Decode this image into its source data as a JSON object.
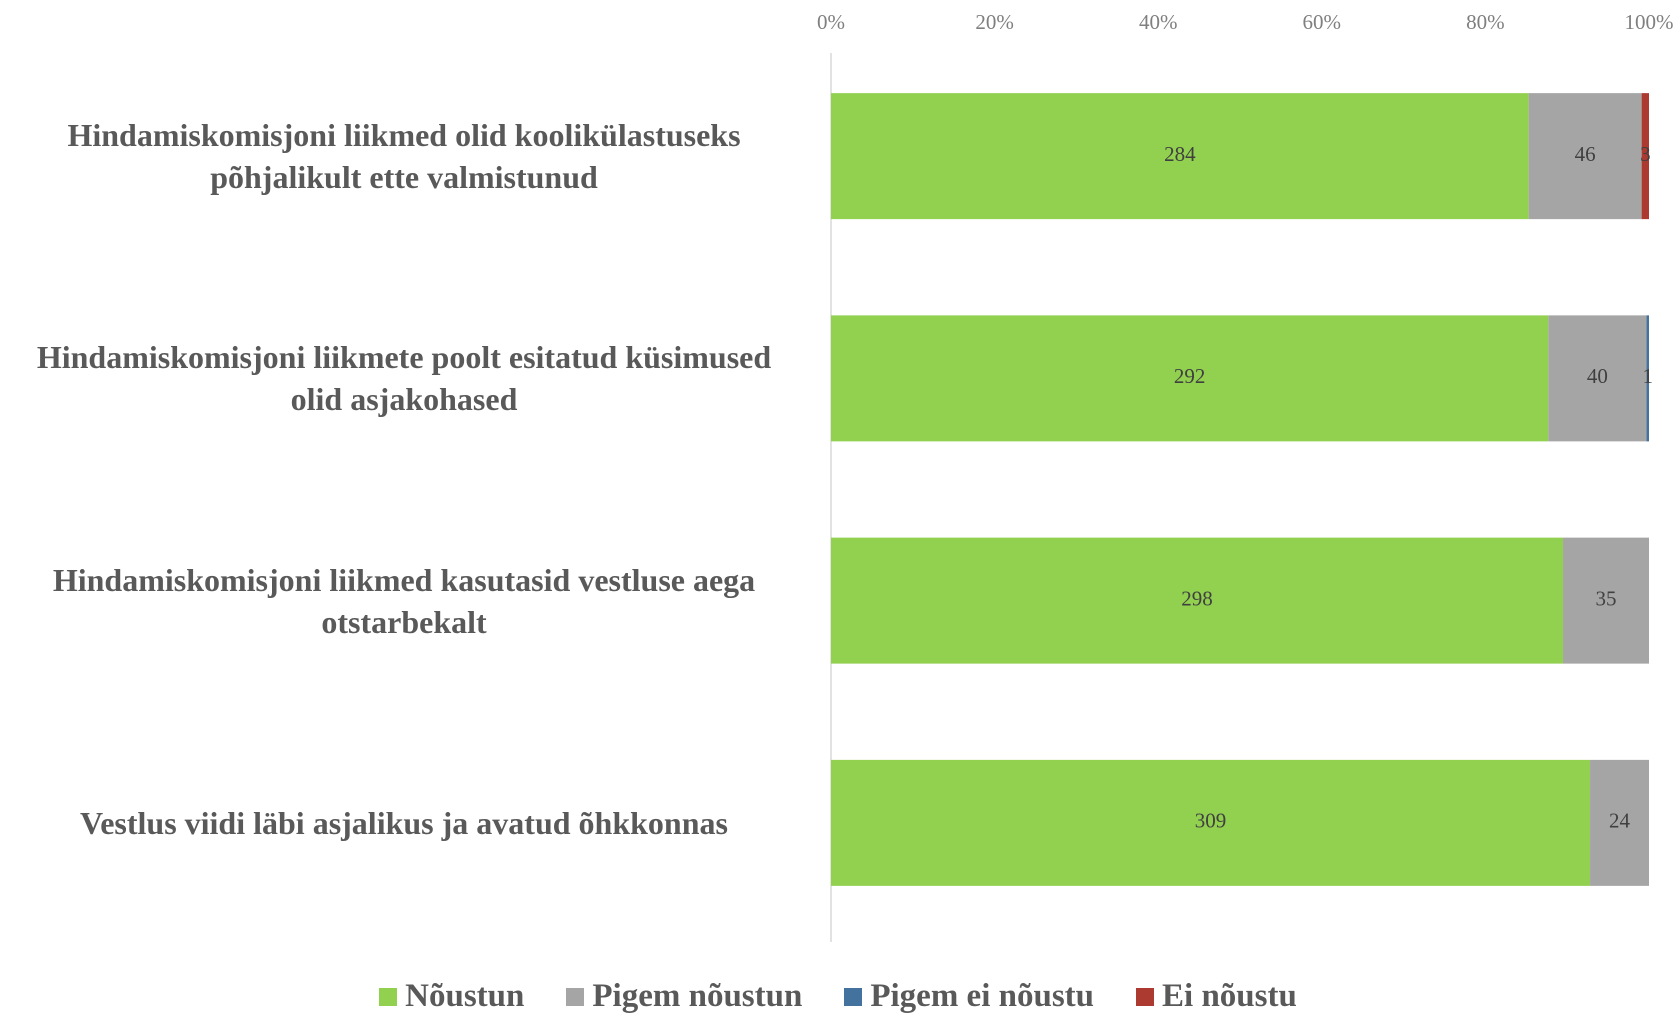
{
  "chart_data": {
    "type": "stacked_bar_100",
    "categories": [
      "Hindamiskomisjoni liikmed olid koolikülastuseks põhjalikult ette valmistunud",
      "Hindamiskomisjoni liikmete poolt esitatud küsimused olid asjakohased",
      "Hindamiskomisjoni liikmed kasutasid vestluse aega otstarbekalt",
      "Vestlus viidi läbi asjalikus ja avatud õhkkonnas"
    ],
    "series": [
      {
        "name": "Nõustun",
        "color": "#92d050",
        "values": [
          284,
          292,
          298,
          309
        ]
      },
      {
        "name": "Pigem nõustun",
        "color": "#a5a5a5",
        "values": [
          46,
          40,
          35,
          24
        ]
      },
      {
        "name": "Pigem ei nõustu",
        "color": "#44729e",
        "values": [
          null,
          1,
          null,
          null
        ]
      },
      {
        "name": "Ei nõustu",
        "color": "#ad3a30",
        "values": [
          3,
          null,
          null,
          null
        ]
      }
    ],
    "xlim": [
      0,
      100
    ],
    "xticks": [
      {
        "value": 0,
        "label": "0%"
      },
      {
        "value": 20,
        "label": "20%"
      },
      {
        "value": 40,
        "label": "40%"
      },
      {
        "value": 60,
        "label": "60%"
      },
      {
        "value": 80,
        "label": "80%"
      },
      {
        "value": 100,
        "label": "100%"
      }
    ],
    "legend": "bottom"
  }
}
